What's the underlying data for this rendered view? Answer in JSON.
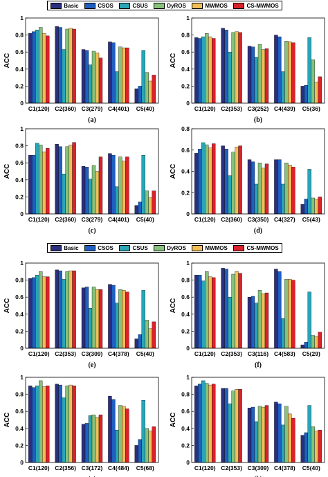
{
  "colors": {
    "Basic": "#2b2f7e",
    "CSOS": "#1f5fbf",
    "CSUS": "#2aa5b5",
    "DyROS": "#86c27a",
    "MWMOS": "#f1be58",
    "CS-MWMOS": "#d9222a"
  },
  "legends": [
    {
      "items": [
        "Basic",
        "CSOS",
        "CSUS",
        "DyROS",
        "MWMOS",
        "CS-MWMOS"
      ]
    },
    {
      "items": [
        "Basic",
        "CSOS",
        "CSUS",
        "DyROS",
        "MWMOS",
        "CS-MWMOS"
      ]
    }
  ],
  "chart_data": [
    {
      "type": "bar",
      "panel": "(a)",
      "ylabel": "ACC",
      "ylim": [
        0,
        1
      ],
      "yticks": [
        "0",
        "0.2",
        "0.4",
        "0.6",
        "0.8",
        "1"
      ],
      "categories": [
        "C1(120)",
        "C2(360)",
        "C3(279)",
        "C4(401)",
        "C5(40)"
      ],
      "series": [
        {
          "name": "Basic",
          "values": [
            0.82,
            0.9,
            0.63,
            0.72,
            0.17
          ]
        },
        {
          "name": "CSOS",
          "values": [
            0.84,
            0.89,
            0.62,
            0.71,
            0.2
          ]
        },
        {
          "name": "CSUS",
          "values": [
            0.86,
            0.63,
            0.45,
            0.37,
            0.62
          ]
        },
        {
          "name": "DyROS",
          "values": [
            0.89,
            0.87,
            0.61,
            0.66,
            0.36
          ]
        },
        {
          "name": "MWMOS",
          "values": [
            0.82,
            0.88,
            0.59,
            0.65,
            0.26
          ]
        },
        {
          "name": "CS-MWMOS",
          "values": [
            0.79,
            0.87,
            0.53,
            0.65,
            0.33
          ]
        }
      ]
    },
    {
      "type": "bar",
      "panel": "(b)",
      "ylabel": "ACC",
      "ylim": [
        0,
        1
      ],
      "yticks": [
        "0",
        "0.2",
        "0.4",
        "0.6",
        "0.8",
        "1"
      ],
      "categories": [
        "C1(120)",
        "C2(353)",
        "C3(252)",
        "C4(439)",
        "C5(36)"
      ],
      "series": [
        {
          "name": "Basic",
          "values": [
            0.77,
            0.88,
            0.67,
            0.8,
            0.2
          ]
        },
        {
          "name": "CSOS",
          "values": [
            0.76,
            0.86,
            0.66,
            0.78,
            0.21
          ]
        },
        {
          "name": "CSUS",
          "values": [
            0.78,
            0.6,
            0.54,
            0.37,
            0.77
          ]
        },
        {
          "name": "DyROS",
          "values": [
            0.82,
            0.83,
            0.69,
            0.73,
            0.51
          ]
        },
        {
          "name": "MWMOS",
          "values": [
            0.78,
            0.84,
            0.63,
            0.72,
            0.25
          ]
        },
        {
          "name": "CS-MWMOS",
          "values": [
            0.76,
            0.83,
            0.64,
            0.71,
            0.31
          ]
        }
      ]
    },
    {
      "type": "bar",
      "panel": "(c)",
      "ylabel": "ACC",
      "ylim": [
        0,
        1
      ],
      "yticks": [
        "0",
        "0.2",
        "0.4",
        "0.6",
        "0.8",
        "1"
      ],
      "categories": [
        "C1(120)",
        "C2(360)",
        "C3(279)",
        "C4(401)",
        "C5(40)"
      ],
      "series": [
        {
          "name": "Basic",
          "values": [
            0.69,
            0.82,
            0.56,
            0.71,
            0.1
          ]
        },
        {
          "name": "CSOS",
          "values": [
            0.69,
            0.79,
            0.55,
            0.69,
            0.14
          ]
        },
        {
          "name": "CSUS",
          "values": [
            0.83,
            0.47,
            0.41,
            0.32,
            0.69
          ]
        },
        {
          "name": "DyROS",
          "values": [
            0.81,
            0.79,
            0.57,
            0.67,
            0.27
          ]
        },
        {
          "name": "MWMOS",
          "values": [
            0.73,
            0.81,
            0.5,
            0.62,
            0.19
          ]
        },
        {
          "name": "CS-MWMOS",
          "values": [
            0.77,
            0.84,
            0.67,
            0.67,
            0.27
          ]
        }
      ]
    },
    {
      "type": "bar",
      "panel": "(d)",
      "ylabel": "ACC",
      "ylim": [
        0,
        0.8
      ],
      "yticks": [
        "0",
        "0.2",
        "0.4",
        "0.6",
        "0.8"
      ],
      "categories": [
        "C1(120)",
        "C2(360)",
        "C3(350)",
        "C4(327)",
        "C5(43)"
      ],
      "series": [
        {
          "name": "Basic",
          "values": [
            0.57,
            0.64,
            0.51,
            0.51,
            0.09
          ]
        },
        {
          "name": "CSOS",
          "values": [
            0.61,
            0.61,
            0.49,
            0.51,
            0.14
          ]
        },
        {
          "name": "CSUS",
          "values": [
            0.67,
            0.36,
            0.28,
            0.28,
            0.42
          ]
        },
        {
          "name": "DyROS",
          "values": [
            0.65,
            0.58,
            0.48,
            0.48,
            0.15
          ]
        },
        {
          "name": "MWMOS",
          "values": [
            0.62,
            0.63,
            0.43,
            0.46,
            0.14
          ]
        },
        {
          "name": "CS-MWMOS",
          "values": [
            0.66,
            0.64,
            0.47,
            0.44,
            0.16
          ]
        }
      ]
    },
    {
      "type": "bar",
      "panel": "(e)",
      "ylabel": "ACC",
      "ylim": [
        0,
        1
      ],
      "yticks": [
        "0",
        "0.2",
        "0.4",
        "0.6",
        "0.8",
        "1"
      ],
      "categories": [
        "C1(120)",
        "C2(353)",
        "C3(309)",
        "C4(378)",
        "C5(40)"
      ],
      "series": [
        {
          "name": "Basic",
          "values": [
            0.82,
            0.92,
            0.71,
            0.75,
            0.11
          ]
        },
        {
          "name": "CSOS",
          "values": [
            0.83,
            0.91,
            0.72,
            0.74,
            0.16
          ]
        },
        {
          "name": "CSUS",
          "values": [
            0.86,
            0.81,
            0.47,
            0.53,
            0.68
          ]
        },
        {
          "name": "DyROS",
          "values": [
            0.9,
            0.9,
            0.72,
            0.69,
            0.33
          ]
        },
        {
          "name": "MWMOS",
          "values": [
            0.84,
            0.91,
            0.69,
            0.68,
            0.23
          ]
        },
        {
          "name": "CS-MWMOS",
          "values": [
            0.84,
            0.91,
            0.69,
            0.66,
            0.31
          ]
        }
      ]
    },
    {
      "type": "bar",
      "panel": "(f)",
      "ylabel": "ACC",
      "ylim": [
        0,
        1
      ],
      "yticks": [
        "0",
        "0.2",
        "0.4",
        "0.6",
        "0.8",
        "1"
      ],
      "categories": [
        "C1(120)",
        "C2(353)",
        "C3(116)",
        "C4(583)",
        "C5(29)"
      ],
      "series": [
        {
          "name": "Basic",
          "values": [
            0.86,
            0.94,
            0.6,
            0.93,
            0.04
          ]
        },
        {
          "name": "CSOS",
          "values": [
            0.86,
            0.93,
            0.61,
            0.9,
            0.07
          ]
        },
        {
          "name": "CSUS",
          "values": [
            0.79,
            0.6,
            0.53,
            0.35,
            0.66
          ]
        },
        {
          "name": "DyROS",
          "values": [
            0.9,
            0.87,
            0.68,
            0.81,
            0.15
          ]
        },
        {
          "name": "MWMOS",
          "values": [
            0.84,
            0.9,
            0.64,
            0.81,
            0.14
          ]
        },
        {
          "name": "CS-MWMOS",
          "values": [
            0.83,
            0.88,
            0.65,
            0.8,
            0.19
          ]
        }
      ]
    },
    {
      "type": "bar",
      "panel": "(g)",
      "ylabel": "ACC",
      "ylim": [
        0,
        1
      ],
      "yticks": [
        "0",
        "0.2",
        "0.4",
        "0.6",
        "0.8",
        "1"
      ],
      "categories": [
        "C1(120)",
        "C2(356)",
        "C3(172)",
        "C4(484)",
        "C5(68)"
      ],
      "series": [
        {
          "name": "Basic",
          "values": [
            0.9,
            0.92,
            0.45,
            0.78,
            0.2
          ]
        },
        {
          "name": "CSOS",
          "values": [
            0.88,
            0.91,
            0.46,
            0.74,
            0.27
          ]
        },
        {
          "name": "CSUS",
          "values": [
            0.9,
            0.76,
            0.55,
            0.38,
            0.73
          ]
        },
        {
          "name": "DyROS",
          "values": [
            0.96,
            0.9,
            0.56,
            0.67,
            0.4
          ]
        },
        {
          "name": "MWMOS",
          "values": [
            0.89,
            0.91,
            0.53,
            0.66,
            0.37
          ]
        },
        {
          "name": "CS-MWMOS",
          "values": [
            0.9,
            0.9,
            0.56,
            0.63,
            0.42
          ]
        }
      ]
    },
    {
      "type": "bar",
      "panel": "(h)",
      "ylabel": "ACC",
      "ylim": [
        0,
        1
      ],
      "yticks": [
        "0",
        "0.2",
        "0.4",
        "0.6",
        "0.8",
        "1"
      ],
      "categories": [
        "C1(120)",
        "C2(353)",
        "C3(309)",
        "C4(378)",
        "C5(40)"
      ],
      "series": [
        {
          "name": "Basic",
          "values": [
            0.9,
            0.87,
            0.64,
            0.71,
            0.32
          ]
        },
        {
          "name": "CSOS",
          "values": [
            0.92,
            0.87,
            0.65,
            0.69,
            0.35
          ]
        },
        {
          "name": "CSUS",
          "values": [
            0.96,
            0.69,
            0.48,
            0.44,
            0.67
          ]
        },
        {
          "name": "DyROS",
          "values": [
            0.93,
            0.84,
            0.66,
            0.66,
            0.42
          ]
        },
        {
          "name": "MWMOS",
          "values": [
            0.91,
            0.86,
            0.65,
            0.57,
            0.37
          ]
        },
        {
          "name": "CS-MWMOS",
          "values": [
            0.92,
            0.86,
            0.67,
            0.52,
            0.38
          ]
        }
      ]
    }
  ]
}
